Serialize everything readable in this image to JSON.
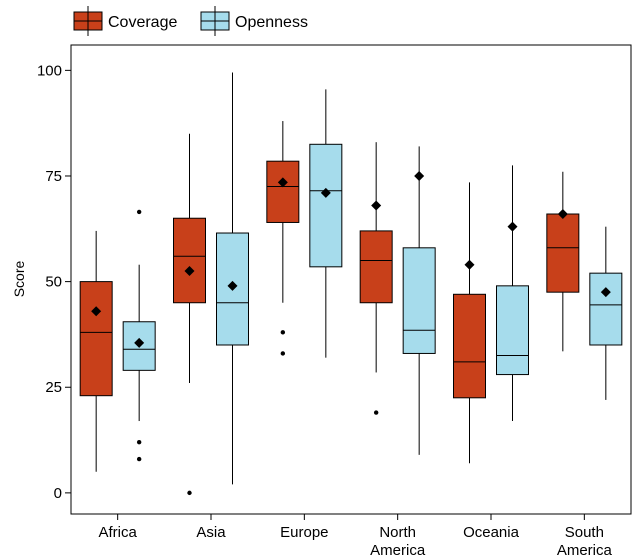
{
  "chart_data": {
    "type": "box",
    "title": "",
    "xlabel": "",
    "ylabel": "Score",
    "ylim": [
      -5,
      106
    ],
    "yticks": [
      0,
      25,
      50,
      75,
      100
    ],
    "grid": false,
    "legend_position": "top-left",
    "categories": [
      {
        "label_lines": [
          "Africa"
        ]
      },
      {
        "label_lines": [
          "Asia"
        ]
      },
      {
        "label_lines": [
          "Europe"
        ]
      },
      {
        "label_lines": [
          "North",
          "America"
        ]
      },
      {
        "label_lines": [
          "Oceania"
        ]
      },
      {
        "label_lines": [
          "South",
          "America"
        ]
      }
    ],
    "series": [
      {
        "name": "Coverage",
        "color": "#c8401a",
        "stats": [
          {
            "min": 5,
            "q1": 23,
            "median": 38,
            "q3": 50,
            "max": 62,
            "mean": 43,
            "outliers": []
          },
          {
            "min": 26,
            "q1": 45,
            "median": 56,
            "q3": 65,
            "max": 85,
            "mean": 52.5,
            "outliers": [
              0
            ]
          },
          {
            "min": 45,
            "q1": 64,
            "median": 72.5,
            "q3": 78.5,
            "max": 88,
            "mean": 73.5,
            "outliers": [
              38,
              33
            ]
          },
          {
            "min": 28.5,
            "q1": 45,
            "median": 55,
            "q3": 62,
            "max": 83,
            "mean": 68,
            "outliers": [
              19
            ]
          },
          {
            "min": 7,
            "q1": 22.5,
            "median": 31,
            "q3": 47,
            "max": 73.5,
            "mean": 54,
            "outliers": []
          },
          {
            "min": 33.5,
            "q1": 47.5,
            "median": 58,
            "q3": 66,
            "max": 76,
            "mean": 66,
            "outliers": []
          }
        ]
      },
      {
        "name": "Openness",
        "color": "#a6dcec",
        "stats": [
          {
            "min": 17,
            "q1": 29,
            "median": 34,
            "q3": 40.5,
            "max": 54,
            "mean": 35.5,
            "outliers": [
              66.5,
              12,
              8
            ]
          },
          {
            "min": 2,
            "q1": 35,
            "median": 45,
            "q3": 61.5,
            "max": 99.5,
            "mean": 49,
            "outliers": []
          },
          {
            "min": 32,
            "q1": 53.5,
            "median": 71.5,
            "q3": 82.5,
            "max": 95.5,
            "mean": 71,
            "outliers": []
          },
          {
            "min": 9,
            "q1": 33,
            "median": 38.5,
            "q3": 58,
            "max": 82,
            "mean": 75,
            "outliers": []
          },
          {
            "min": 17,
            "q1": 28,
            "median": 32.5,
            "q3": 49,
            "max": 77.5,
            "mean": 63,
            "outliers": []
          },
          {
            "min": 22,
            "q1": 35,
            "median": 44.5,
            "q3": 52,
            "max": 63,
            "mean": 47.5,
            "outliers": []
          }
        ]
      }
    ]
  }
}
